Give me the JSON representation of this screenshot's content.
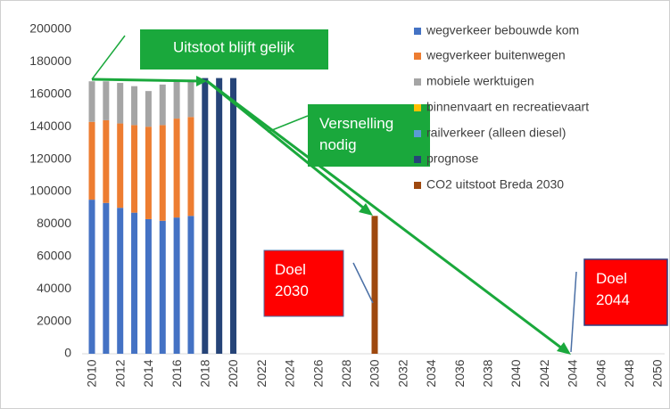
{
  "chart_data": {
    "type": "bar",
    "stacked": true,
    "categories": [
      "2010",
      null,
      "2012",
      null,
      "2014",
      null,
      "2016",
      null,
      "2018",
      null,
      "2020",
      null,
      "2022",
      null,
      "2024",
      null,
      "2026",
      null,
      "2028",
      null,
      "2030",
      null,
      "2032",
      null,
      "2034",
      null,
      "2036",
      null,
      "2038",
      null,
      "2040",
      null,
      "2042",
      null,
      "2044",
      null,
      "2046",
      null,
      "2048",
      null,
      "2050"
    ],
    "series": [
      {
        "name": "wegverkeer bebouwde kom",
        "color": "#4472c4",
        "values": [
          95000,
          93000,
          90000,
          87000,
          83000,
          82000,
          84000,
          85000,
          null,
          null,
          null,
          null,
          null,
          null,
          null,
          null,
          null,
          null,
          null,
          null,
          null,
          null,
          null,
          null,
          null,
          null,
          null,
          null,
          null,
          null,
          null,
          null,
          null,
          null,
          null,
          null,
          null,
          null,
          null,
          null,
          null
        ]
      },
      {
        "name": "wegverkeer buitenwegen",
        "color": "#ed7d31",
        "values": [
          48000,
          51000,
          52000,
          54000,
          57000,
          59000,
          61000,
          61000,
          null,
          null,
          null,
          null,
          null,
          null,
          null,
          null,
          null,
          null,
          null,
          null,
          null,
          null,
          null,
          null,
          null,
          null,
          null,
          null,
          null,
          null,
          null,
          null,
          null,
          null,
          null,
          null,
          null,
          null,
          null,
          null,
          null
        ]
      },
      {
        "name": "mobiele werktuigen",
        "color": "#a5a5a5",
        "values": [
          25000,
          24000,
          25000,
          24000,
          22000,
          25000,
          23000,
          23000,
          null,
          null,
          null,
          null,
          null,
          null,
          null,
          null,
          null,
          null,
          null,
          null,
          null,
          null,
          null,
          null,
          null,
          null,
          null,
          null,
          null,
          null,
          null,
          null,
          null,
          null,
          null,
          null,
          null,
          null,
          null,
          null,
          null
        ]
      },
      {
        "name": "binnenvaart en recreatievaart",
        "color": "#ffc000",
        "values": [
          null,
          null,
          null,
          null,
          null,
          null,
          null,
          null,
          null,
          null,
          null,
          null,
          null,
          null,
          null,
          null,
          null,
          null,
          null,
          null,
          null,
          null,
          null,
          null,
          null,
          null,
          null,
          null,
          null,
          null,
          null,
          null,
          null,
          null,
          null,
          null,
          null,
          null,
          null,
          null,
          null
        ]
      },
      {
        "name": "railverkeer (alleen diesel)",
        "color": "#5b9bd5",
        "values": [
          null,
          null,
          null,
          null,
          null,
          null,
          null,
          null,
          null,
          null,
          null,
          null,
          null,
          null,
          null,
          null,
          null,
          null,
          null,
          null,
          null,
          null,
          null,
          null,
          null,
          null,
          null,
          null,
          null,
          null,
          null,
          null,
          null,
          null,
          null,
          null,
          null,
          null,
          null,
          null,
          null
        ]
      },
      {
        "name": "prognose",
        "color": "#264478",
        "values": [
          null,
          null,
          null,
          null,
          null,
          null,
          null,
          null,
          170000,
          170000,
          170000,
          null,
          null,
          null,
          null,
          null,
          null,
          null,
          null,
          null,
          null,
          null,
          null,
          null,
          null,
          null,
          null,
          null,
          null,
          null,
          null,
          null,
          null,
          null,
          null,
          null,
          null,
          null,
          null,
          null,
          null
        ]
      },
      {
        "name": "CO2 uitstoot Breda 2030",
        "color": "#9e480e",
        "values": [
          null,
          null,
          null,
          null,
          null,
          null,
          null,
          null,
          null,
          null,
          null,
          null,
          null,
          null,
          null,
          null,
          null,
          null,
          null,
          null,
          85000,
          null,
          null,
          null,
          null,
          null,
          null,
          null,
          null,
          null,
          null,
          null,
          null,
          null,
          null,
          null,
          null,
          null,
          null,
          null,
          null
        ]
      }
    ],
    "ylim": [
      0,
      200000
    ],
    "yticks": [
      0,
      20000,
      40000,
      60000,
      80000,
      100000,
      120000,
      140000,
      160000,
      180000,
      200000
    ],
    "annotations": [
      "Uitstoot blijft gelijk",
      "Versnelling nodig",
      "Doel 2030",
      "Doel 2044"
    ]
  }
}
